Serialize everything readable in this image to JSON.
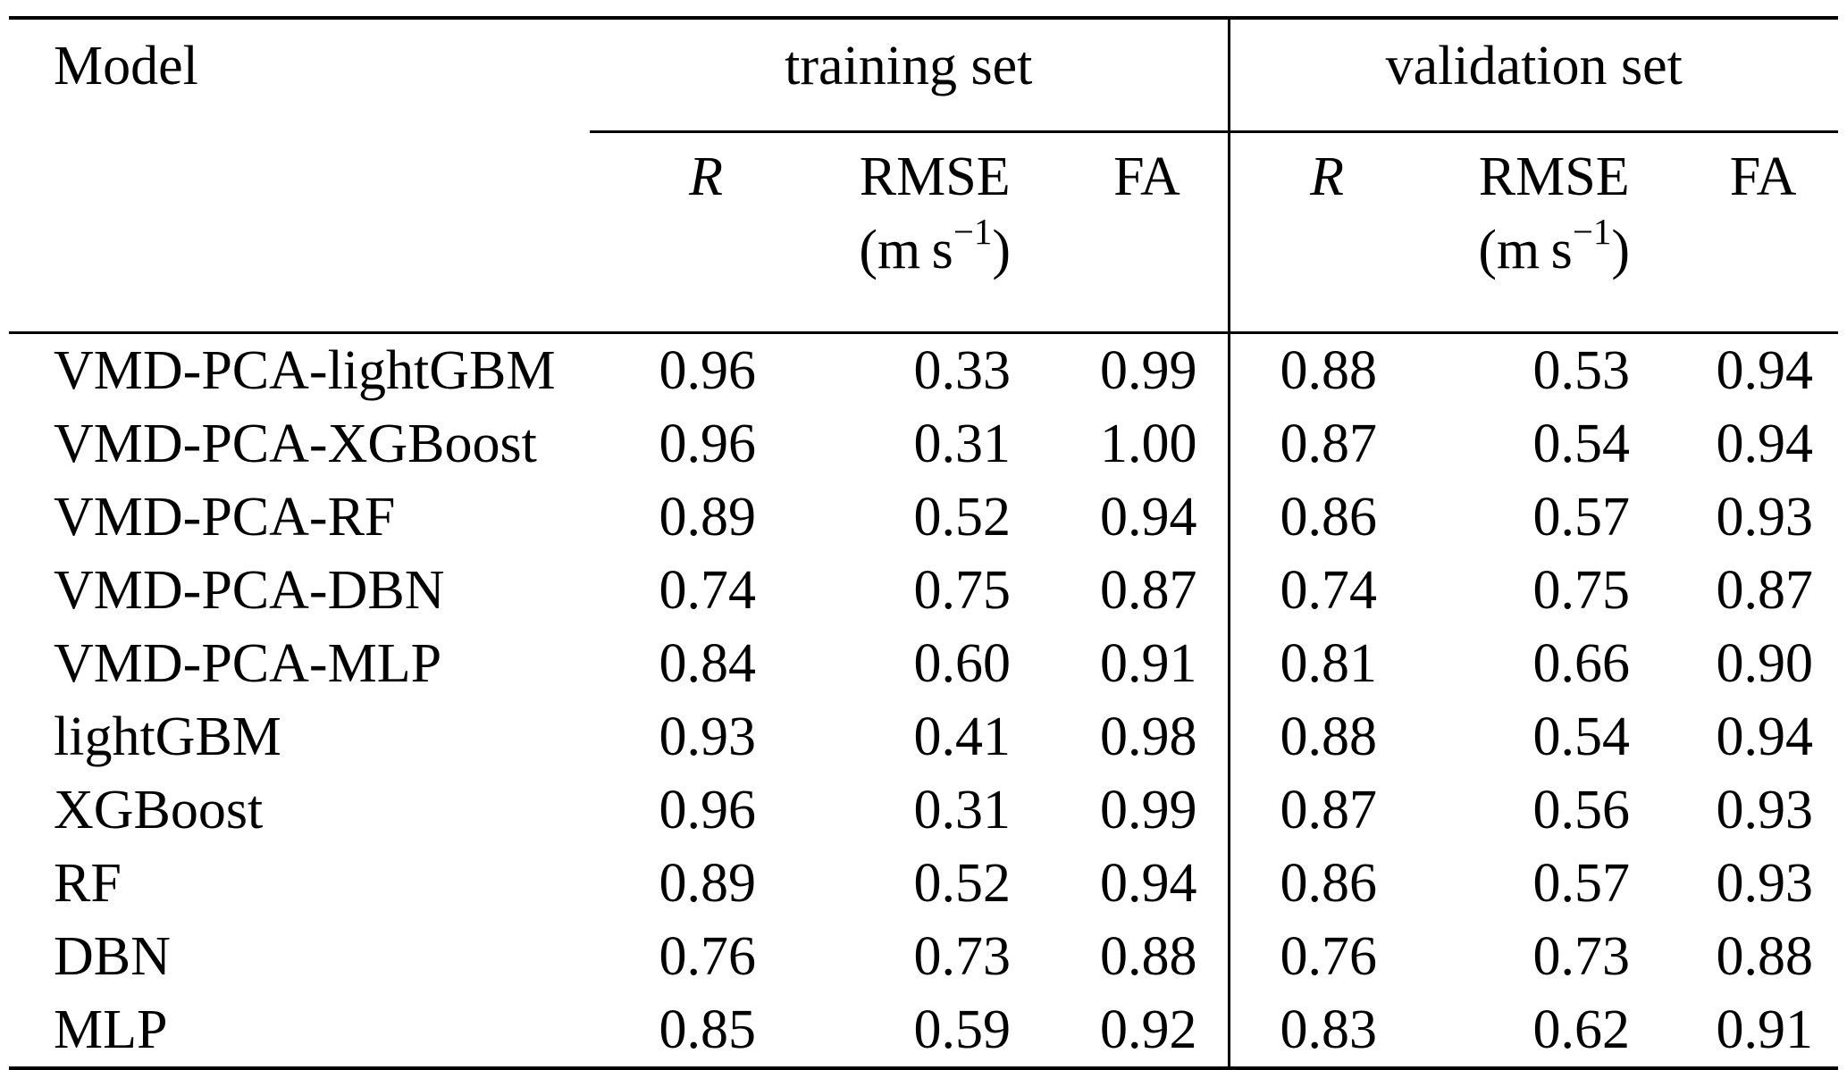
{
  "table": {
    "model_header": "Model",
    "groups": {
      "training": "training set",
      "validation": "validation set"
    },
    "metrics": {
      "r": "R",
      "rmse": "RMSE",
      "units_prefix": "(m s",
      "units_sup": "−1",
      "units_suffix": ")",
      "fa": "FA"
    },
    "rows": [
      {
        "model": "VMD-PCA-lightGBM",
        "train": [
          "0.96",
          "0.33",
          "0.99"
        ],
        "val": [
          "0.88",
          "0.53",
          "0.94"
        ]
      },
      {
        "model": "VMD-PCA-XGBoost",
        "train": [
          "0.96",
          "0.31",
          "1.00"
        ],
        "val": [
          "0.87",
          "0.54",
          "0.94"
        ]
      },
      {
        "model": "VMD-PCA-RF",
        "train": [
          "0.89",
          "0.52",
          "0.94"
        ],
        "val": [
          "0.86",
          "0.57",
          "0.93"
        ]
      },
      {
        "model": "VMD-PCA-DBN",
        "train": [
          "0.74",
          "0.75",
          "0.87"
        ],
        "val": [
          "0.74",
          "0.75",
          "0.87"
        ]
      },
      {
        "model": "VMD-PCA-MLP",
        "train": [
          "0.84",
          "0.60",
          "0.91"
        ],
        "val": [
          "0.81",
          "0.66",
          "0.90"
        ]
      },
      {
        "model": "lightGBM",
        "train": [
          "0.93",
          "0.41",
          "0.98"
        ],
        "val": [
          "0.88",
          "0.54",
          "0.94"
        ]
      },
      {
        "model": "XGBoost",
        "train": [
          "0.96",
          "0.31",
          "0.99"
        ],
        "val": [
          "0.87",
          "0.56",
          "0.93"
        ]
      },
      {
        "model": "RF",
        "train": [
          "0.89",
          "0.52",
          "0.94"
        ],
        "val": [
          "0.86",
          "0.57",
          "0.93"
        ]
      },
      {
        "model": "DBN",
        "train": [
          "0.76",
          "0.73",
          "0.88"
        ],
        "val": [
          "0.76",
          "0.73",
          "0.88"
        ]
      },
      {
        "model": "MLP",
        "train": [
          "0.85",
          "0.59",
          "0.92"
        ],
        "val": [
          "0.83",
          "0.62",
          "0.91"
        ]
      }
    ]
  }
}
